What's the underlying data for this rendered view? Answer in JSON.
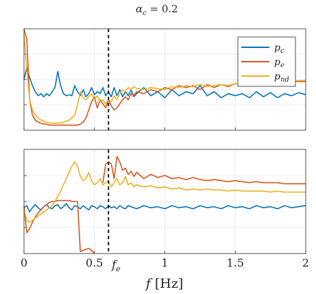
{
  "title": {
    "main": "α",
    "sub": "c",
    "rest": " = 0.2"
  },
  "xlabel": {
    "var": "f",
    "unit": "[Hz]"
  },
  "fe_label": {
    "main": "f",
    "sub": "e"
  },
  "legend": [
    {
      "main": "p",
      "sub": "c"
    },
    {
      "main": "p",
      "sub": "e"
    },
    {
      "main": "p",
      "sub": "nd"
    }
  ],
  "colors": {
    "pc": "#0072BD",
    "pe": "#D95319",
    "pnd": "#EDB120",
    "fe_line": "#000000"
  },
  "chart_data": [
    {
      "type": "line",
      "panel": "top",
      "xlim": [
        0,
        2
      ],
      "ylim": [
        0,
        1
      ],
      "grid": true,
      "legend_position": "top-right",
      "fe": 0.6,
      "x": [
        0,
        0.02,
        0.04,
        0.06,
        0.08,
        0.1,
        0.12,
        0.14,
        0.16,
        0.18,
        0.2,
        0.22,
        0.24,
        0.26,
        0.28,
        0.3,
        0.32,
        0.34,
        0.36,
        0.38,
        0.4,
        0.42,
        0.44,
        0.46,
        0.48,
        0.5,
        0.52,
        0.54,
        0.56,
        0.58,
        0.6,
        0.62,
        0.64,
        0.66,
        0.68,
        0.7,
        0.72,
        0.74,
        0.76,
        0.78,
        0.8,
        0.85,
        0.9,
        0.95,
        1.0,
        1.05,
        1.1,
        1.15,
        1.2,
        1.25,
        1.3,
        1.35,
        1.4,
        1.45,
        1.5,
        1.55,
        1.6,
        1.65,
        1.7,
        1.75,
        1.8,
        1.85,
        1.9,
        1.95,
        2.0
      ],
      "series": [
        {
          "name": "p_c",
          "values": [
            0.5,
            0.62,
            0.52,
            0.44,
            0.38,
            0.34,
            0.36,
            0.33,
            0.36,
            0.34,
            0.38,
            0.42,
            0.58,
            0.44,
            0.36,
            0.34,
            0.35,
            0.34,
            0.44,
            0.38,
            0.34,
            0.4,
            0.33,
            0.36,
            0.42,
            0.35,
            0.38,
            0.36,
            0.42,
            0.34,
            0.38,
            0.33,
            0.42,
            0.34,
            0.4,
            0.33,
            0.38,
            0.34,
            0.4,
            0.33,
            0.36,
            0.42,
            0.34,
            0.38,
            0.32,
            0.4,
            0.34,
            0.38,
            0.36,
            0.44,
            0.34,
            0.38,
            0.32,
            0.36,
            0.34,
            0.36,
            0.32,
            0.38,
            0.33,
            0.37,
            0.32,
            0.36,
            0.34,
            0.37,
            0.35
          ]
        },
        {
          "name": "p_e",
          "values": [
            1.0,
            0.9,
            0.3,
            0.15,
            0.1,
            0.08,
            0.07,
            0.06,
            0.06,
            0.05,
            0.05,
            0.05,
            0.05,
            0.05,
            0.05,
            0.05,
            0.05,
            0.05,
            0.05,
            0.05,
            0.06,
            0.08,
            0.12,
            0.2,
            0.28,
            0.33,
            0.22,
            0.3,
            0.26,
            0.22,
            0.3,
            0.24,
            0.2,
            0.22,
            0.26,
            0.3,
            0.33,
            0.3,
            0.36,
            0.34,
            0.38,
            0.36,
            0.4,
            0.38,
            0.42,
            0.4,
            0.44,
            0.42,
            0.44,
            0.4,
            0.45,
            0.42,
            0.45,
            0.43,
            0.46,
            0.44,
            0.46,
            0.45,
            0.47,
            0.46,
            0.47,
            0.47,
            0.48,
            0.48,
            0.48
          ]
        },
        {
          "name": "p_nd",
          "values": [
            0.95,
            0.6,
            0.3,
            0.2,
            0.15,
            0.12,
            0.1,
            0.09,
            0.08,
            0.07,
            0.07,
            0.07,
            0.07,
            0.07,
            0.08,
            0.09,
            0.1,
            0.12,
            0.15,
            0.25,
            0.38,
            0.32,
            0.3,
            0.33,
            0.36,
            0.3,
            0.34,
            0.28,
            0.3,
            0.26,
            0.3,
            0.28,
            0.34,
            0.3,
            0.36,
            0.4,
            0.38,
            0.42,
            0.4,
            0.43,
            0.41,
            0.4,
            0.42,
            0.41,
            0.4,
            0.43,
            0.42,
            0.44,
            0.43,
            0.45,
            0.43,
            0.44,
            0.45,
            0.44,
            0.46,
            0.45,
            0.46,
            0.47,
            0.46,
            0.47,
            0.48,
            0.47,
            0.48,
            0.49,
            0.49
          ]
        }
      ]
    },
    {
      "type": "line",
      "panel": "bottom",
      "xlim": [
        0,
        2
      ],
      "ylim": [
        0,
        1
      ],
      "grid": true,
      "fe": 0.6,
      "x": [
        0,
        0.02,
        0.04,
        0.06,
        0.08,
        0.1,
        0.12,
        0.14,
        0.16,
        0.18,
        0.2,
        0.22,
        0.24,
        0.26,
        0.28,
        0.3,
        0.32,
        0.34,
        0.36,
        0.38,
        0.4,
        0.42,
        0.44,
        0.46,
        0.48,
        0.5,
        0.52,
        0.54,
        0.56,
        0.58,
        0.6,
        0.62,
        0.64,
        0.66,
        0.68,
        0.7,
        0.72,
        0.74,
        0.76,
        0.78,
        0.8,
        0.85,
        0.9,
        0.95,
        1.0,
        1.05,
        1.1,
        1.15,
        1.2,
        1.25,
        1.3,
        1.35,
        1.4,
        1.45,
        1.5,
        1.55,
        1.6,
        1.65,
        1.7,
        1.75,
        1.8,
        1.85,
        1.9,
        1.95,
        2.0
      ],
      "series": [
        {
          "name": "p_c",
          "values": [
            0.44,
            0.46,
            0.4,
            0.44,
            0.47,
            0.44,
            0.42,
            0.45,
            0.47,
            0.44,
            0.43,
            0.46,
            0.47,
            0.43,
            0.45,
            0.48,
            0.44,
            0.42,
            0.46,
            0.45,
            0.43,
            0.46,
            0.44,
            0.42,
            0.46,
            0.45,
            0.43,
            0.46,
            0.45,
            0.43,
            0.46,
            0.44,
            0.45,
            0.43,
            0.46,
            0.44,
            0.43,
            0.46,
            0.45,
            0.44,
            0.43,
            0.46,
            0.44,
            0.45,
            0.43,
            0.46,
            0.44,
            0.45,
            0.43,
            0.46,
            0.44,
            0.45,
            0.43,
            0.46,
            0.44,
            0.45,
            0.43,
            0.46,
            0.44,
            0.45,
            0.43,
            0.46,
            0.44,
            0.45,
            0.46
          ]
        },
        {
          "name": "p_e",
          "values": [
            0.46,
            0.2,
            0.24,
            0.3,
            0.35,
            0.39,
            0.42,
            0.45,
            0.47,
            0.49,
            0.5,
            0.5,
            0.51,
            0.51,
            0.51,
            0.51,
            0.51,
            0.5,
            0.5,
            0.5,
            0.02,
            0.03,
            0.04,
            0.05,
            0.03,
            0.0,
            null,
            null,
            0.68,
            0.86,
            0.88,
            0.86,
            0.72,
            0.93,
            0.88,
            0.8,
            0.82,
            0.76,
            0.79,
            0.74,
            0.78,
            0.72,
            0.76,
            0.73,
            0.75,
            0.72,
            0.73,
            0.71,
            0.73,
            0.71,
            0.7,
            0.71,
            0.7,
            0.69,
            0.7,
            0.69,
            0.68,
            0.69,
            0.68,
            0.68,
            0.68,
            0.67,
            0.67,
            0.67,
            0.67
          ]
        },
        {
          "name": "p_nd",
          "values": [
            0.42,
            0.32,
            0.3,
            0.32,
            0.34,
            0.36,
            0.38,
            0.4,
            0.42,
            0.44,
            0.46,
            0.5,
            0.55,
            0.6,
            0.66,
            0.72,
            0.78,
            0.84,
            0.88,
            0.84,
            0.74,
            0.7,
            0.72,
            0.78,
            0.7,
            0.66,
            0.68,
            0.72,
            0.66,
            0.68,
            0.7,
            0.64,
            0.68,
            0.72,
            0.66,
            0.68,
            0.74,
            0.66,
            0.68,
            0.64,
            0.66,
            0.64,
            0.65,
            0.63,
            0.64,
            0.62,
            0.63,
            0.61,
            0.62,
            0.61,
            0.62,
            0.61,
            0.61,
            0.6,
            0.61,
            0.6,
            0.6,
            0.6,
            0.6,
            0.59,
            0.6,
            0.59,
            0.59,
            0.59,
            0.59
          ]
        }
      ]
    }
  ],
  "x_ticks": [
    {
      "value": 0,
      "label": "0"
    },
    {
      "value": 0.5,
      "label": "0.5"
    },
    {
      "value": 1,
      "label": "1"
    },
    {
      "value": 1.5,
      "label": "1.5"
    },
    {
      "value": 2,
      "label": "2"
    }
  ]
}
